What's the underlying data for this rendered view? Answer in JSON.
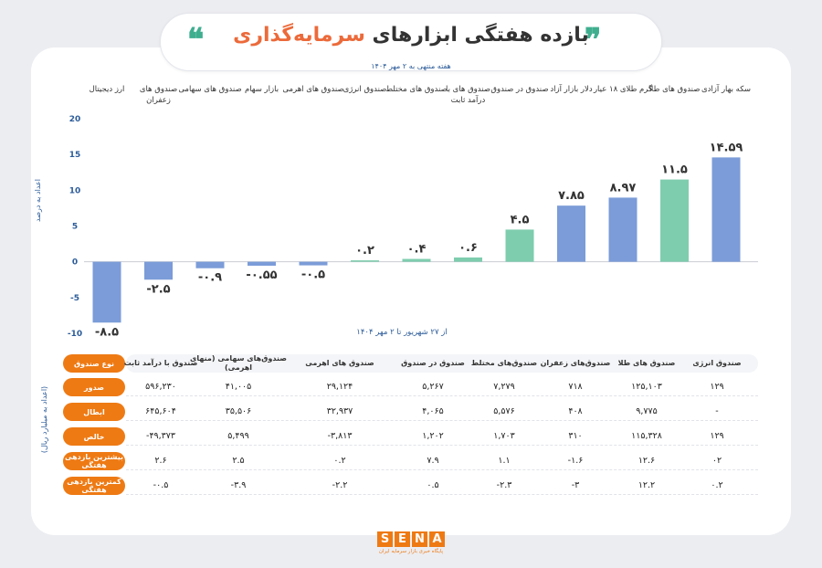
{
  "header": {
    "title_part1": "بازده هفتگی ابزارهای",
    "title_part2": "سرمایه‌گذاری",
    "subtitle": "هفته منتهی به ۲ مهر ۱۴۰۴",
    "quote_open": "❞",
    "quote_close": "❝",
    "accent_color": "#ec6a3a",
    "quote_color": "#3fae8f"
  },
  "chart_data": {
    "type": "bar",
    "categories": [
      "سکه بهار آزادی",
      "صندوق های طلا",
      "گرم طلای ۱۸ عیار",
      "دلار بازار آزاد",
      "صندوق در صندوق",
      "صندوق های با درآمد ثابت",
      "صندوق های مختلط",
      "صندوق انرژی",
      "صندوق های اهرمی",
      "بازار سهام",
      "صندوق های سهامی",
      "صندوق های زعفران",
      "ارز دیجیتال"
    ],
    "values": [
      14.59,
      11.5,
      8.97,
      7.85,
      4.5,
      0.6,
      0.4,
      0.2,
      -0.5,
      -0.55,
      -0.9,
      -2.5,
      -8.5
    ],
    "value_labels": [
      "۱۴.۵۹",
      "۱۱.۵",
      "۸.۹۷",
      "۷.۸۵",
      "۴.۵",
      "۰.۶",
      "۰.۴",
      "۰.۲",
      "-۰.۵",
      "-۰.۵۵",
      "-۰.۹",
      "-۲.۵",
      "-۸.۵"
    ],
    "colors": [
      "#7b9cd8",
      "#7ecdae",
      "#7b9cd8",
      "#7b9cd8",
      "#7ecdae",
      "#7ecdae",
      "#7ecdae",
      "#7ecdae",
      "#7b9cd8",
      "#7b9cd8",
      "#7b9cd8",
      "#7b9cd8",
      "#7b9cd8"
    ],
    "ylim": [
      -10,
      20
    ],
    "yticks": [
      20,
      15,
      10,
      5,
      0,
      -5,
      -10
    ],
    "ytick_labels": [
      "20",
      "15",
      "10",
      "5",
      "0",
      "-5",
      "-10"
    ],
    "ylabel": "اعداد به درصد",
    "xlabel": "",
    "period": "از ۲۷ شهریور تا ۲ مهر ۱۴۰۴",
    "grid": false
  },
  "table": {
    "unit_note": "(اعداد به میلیارد ریال)",
    "header_label": "نوع صندوق",
    "columns": [
      "صندوق انرژی",
      "صندوق های طلا",
      "صندوق‌های زعفران",
      "صندوق‌های مختلط",
      "صندوق در صندوق",
      "صندوق های اهرمی",
      "صندوق‌های سهامی (منهای اهرمی)",
      "صندوق با درآمد ثابت"
    ],
    "rows": [
      {
        "label": "صدور",
        "values": [
          "۱۲۹",
          "۱۲۵,۱۰۳",
          "۷۱۸",
          "۷,۲۷۹",
          "۵,۲۶۷",
          "۲۹,۱۲۴",
          "۴۱,۰۰۵",
          "۵۹۶,۲۳۰"
        ]
      },
      {
        "label": "ابطال",
        "values": [
          "-",
          "۹,۷۷۵",
          "۴۰۸",
          "۵,۵۷۶",
          "۴,۰۶۵",
          "۳۲,۹۳۷",
          "۳۵,۵۰۶",
          "۶۴۵,۶۰۴"
        ]
      },
      {
        "label": "خالص",
        "values": [
          "۱۲۹",
          "۱۱۵,۳۲۸",
          "۳۱۰",
          "۱,۷۰۳",
          "۱,۲۰۲",
          "-۳,۸۱۳",
          "۵,۴۹۹",
          "-۴۹,۳۷۳"
        ]
      },
      {
        "label": "بیشترین بازدهی هفتگی",
        "values": [
          "۰۲",
          "۱۲.۶",
          "-۱.۶",
          "۱.۱",
          "۷.۹",
          "۰.۲",
          "۲.۵",
          "۲.۶"
        ]
      },
      {
        "label": "کمترین بازدهی هفتگی",
        "values": [
          "۰.۲",
          "۱۲.۲",
          "-۳",
          "-۲.۳",
          "۰.۵",
          "-۲.۲",
          "-۳.۹",
          "-۰.۵"
        ]
      }
    ],
    "label_color": "#ee7a14"
  },
  "logo": {
    "letters": [
      "S",
      "E",
      "N",
      "A"
    ],
    "subtitle": "پایگاه خبری بازار سرمایه ایران"
  }
}
